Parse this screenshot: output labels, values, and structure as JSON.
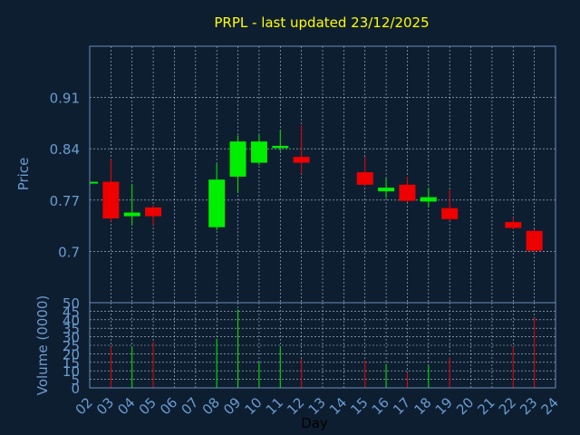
{
  "chart_data": {
    "type": "candlestick",
    "title": "PRPL - last updated 23/12/2025",
    "ylabel": "Price",
    "xlabel": "Day",
    "volume_ylabel": "Volume (0000)",
    "grid": true,
    "price_ylim": [
      0.63,
      0.98
    ],
    "price_ticks": [
      "0.91",
      "0.84",
      "0.77",
      "0.7"
    ],
    "price_tick_values": [
      0.91,
      0.84,
      0.77,
      0.7
    ],
    "volume_ylim": [
      0,
      50
    ],
    "volume_ticks": [
      "0",
      "5",
      "10",
      "15",
      "20",
      "25",
      "30",
      "35",
      "40",
      "45",
      "50"
    ],
    "volume_tick_values": [
      0,
      5,
      10,
      15,
      20,
      25,
      30,
      35,
      40,
      45,
      50
    ],
    "x_ticks": [
      "02",
      "03",
      "04",
      "05",
      "06",
      "07",
      "08",
      "09",
      "10",
      "11",
      "12",
      "13",
      "14",
      "15",
      "16",
      "17",
      "18",
      "19",
      "20",
      "21",
      "22",
      "23",
      "24"
    ],
    "xlim": [
      2,
      24
    ],
    "candles": [
      {
        "day": 2,
        "open": 0.793,
        "high": 0.795,
        "low": 0.791,
        "close": 0.795,
        "volume": 0
      },
      {
        "day": 3,
        "open": 0.795,
        "high": 0.826,
        "low": 0.741,
        "close": 0.745,
        "volume": 24
      },
      {
        "day": 4,
        "open": 0.748,
        "high": 0.792,
        "low": 0.736,
        "close": 0.753,
        "volume": 24
      },
      {
        "day": 5,
        "open": 0.76,
        "high": 0.763,
        "low": 0.736,
        "close": 0.748,
        "volume": 27
      },
      {
        "day": 8,
        "open": 0.733,
        "high": 0.82,
        "low": 0.729,
        "close": 0.798,
        "volume": 29
      },
      {
        "day": 9,
        "open": 0.802,
        "high": 0.858,
        "low": 0.78,
        "close": 0.85,
        "volume": 46
      },
      {
        "day": 10,
        "open": 0.821,
        "high": 0.859,
        "low": 0.818,
        "close": 0.85,
        "volume": 15
      },
      {
        "day": 11,
        "open": 0.841,
        "high": 0.866,
        "low": 0.837,
        "close": 0.844,
        "volume": 24
      },
      {
        "day": 12,
        "open": 0.829,
        "high": 0.872,
        "low": 0.806,
        "close": 0.821,
        "volume": 17
      },
      {
        "day": 15,
        "open": 0.808,
        "high": 0.829,
        "low": 0.79,
        "close": 0.791,
        "volume": 16
      },
      {
        "day": 16,
        "open": 0.782,
        "high": 0.8,
        "low": 0.773,
        "close": 0.787,
        "volume": 14
      },
      {
        "day": 17,
        "open": 0.791,
        "high": 0.802,
        "low": 0.767,
        "close": 0.769,
        "volume": 9
      },
      {
        "day": 18,
        "open": 0.768,
        "high": 0.787,
        "low": 0.76,
        "close": 0.774,
        "volume": 13
      },
      {
        "day": 19,
        "open": 0.759,
        "high": 0.784,
        "low": 0.742,
        "close": 0.744,
        "volume": 18
      },
      {
        "day": 22,
        "open": 0.74,
        "high": 0.746,
        "low": 0.73,
        "close": 0.732,
        "volume": 24
      },
      {
        "day": 23,
        "open": 0.728,
        "high": 0.73,
        "low": 0.7,
        "close": 0.701,
        "volume": 41
      }
    ],
    "colors": {
      "background": "#0e1e31",
      "up": "#00ee00",
      "down": "#ee0000",
      "title": "#ffff00",
      "axis_text": "#6a9ccf",
      "xlabel_text": "#000000",
      "frame": "#6a8fb8",
      "grid": "#b8c8d8"
    }
  }
}
